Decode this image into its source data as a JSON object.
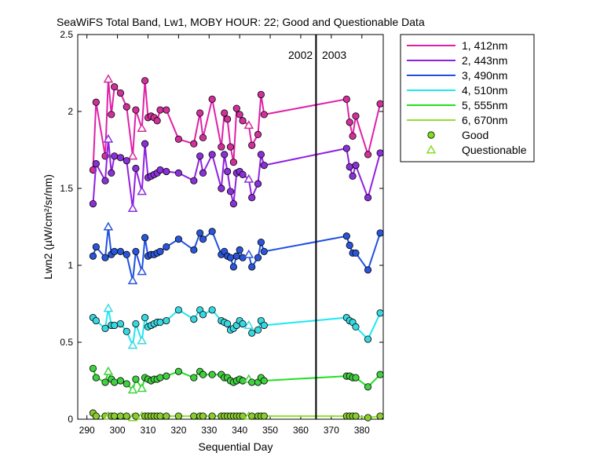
{
  "chart_data": {
    "type": "line",
    "title": "SeaWiFS Total Band, Lw1, MOBY HOUR: 22;  Good and Questionable Data",
    "xlabel": "Sequential Day",
    "ylabel": "Lwn2 (µW/cm²/sr/nm)",
    "xlim": [
      287,
      387
    ],
    "ylim": [
      0,
      2.5
    ],
    "xticks": [
      290,
      300,
      310,
      320,
      330,
      340,
      350,
      360,
      370,
      380
    ],
    "yticks": [
      0,
      0.5,
      1,
      1.5,
      2,
      2.5
    ],
    "ytick_labels": [
      "0",
      "0.5",
      "1",
      "1.5",
      "2",
      "2.5"
    ],
    "grid": false,
    "legend_position": "outside-right-top",
    "year_divider": {
      "x": 365,
      "left_label": "2002",
      "right_label": "2003"
    },
    "series": [
      {
        "name": "1, 412nm",
        "color": "#e020a8",
        "marker_color": "#d0309a",
        "points": [
          [
            292,
            1.62
          ],
          [
            293,
            2.06
          ],
          [
            296,
            1.71
          ],
          [
            297,
            2.21,
            "q"
          ],
          [
            298,
            1.98
          ],
          [
            299,
            2.16
          ],
          [
            301,
            2.12
          ],
          [
            303,
            2.03
          ],
          [
            305,
            1.71,
            "q"
          ],
          [
            306,
            2.01
          ],
          [
            308,
            1.89,
            "q"
          ],
          [
            309,
            2.2
          ],
          [
            310,
            1.96
          ],
          [
            311,
            1.97
          ],
          [
            312,
            1.96
          ],
          [
            313,
            1.94
          ],
          [
            314,
            2.01
          ],
          [
            316,
            2.01
          ],
          [
            320,
            1.82
          ],
          [
            325,
            1.79
          ],
          [
            327,
            1.99
          ],
          [
            328,
            1.83
          ],
          [
            331,
            2.08
          ],
          [
            334,
            1.77
          ],
          [
            335,
            1.99
          ],
          [
            336,
            1.95
          ],
          [
            337,
            1.77
          ],
          [
            338,
            1.67
          ],
          [
            339,
            2.02
          ],
          [
            340,
            1.98
          ],
          [
            341,
            1.94
          ],
          [
            343,
            1.91,
            "q"
          ],
          [
            344,
            1.78
          ],
          [
            346,
            1.85
          ],
          [
            347,
            2.11
          ],
          [
            348,
            1.98
          ],
          [
            375,
            2.08
          ],
          [
            376,
            1.93
          ],
          [
            377,
            1.84
          ],
          [
            378,
            1.97
          ],
          [
            382,
            1.72
          ],
          [
            386,
            2.05
          ]
        ]
      },
      {
        "name": "2, 443nm",
        "color": "#9020e0",
        "marker_color": "#8a30d8",
        "points": [
          [
            292,
            1.4
          ],
          [
            293,
            1.66
          ],
          [
            296,
            1.55
          ],
          [
            297,
            1.82,
            "q"
          ],
          [
            298,
            1.6
          ],
          [
            299,
            1.71
          ],
          [
            301,
            1.7
          ],
          [
            303,
            1.68
          ],
          [
            305,
            1.37,
            "q"
          ],
          [
            306,
            1.63
          ],
          [
            308,
            1.48,
            "q"
          ],
          [
            309,
            1.79
          ],
          [
            310,
            1.57
          ],
          [
            311,
            1.58
          ],
          [
            312,
            1.59
          ],
          [
            313,
            1.6
          ],
          [
            314,
            1.62
          ],
          [
            316,
            1.61
          ],
          [
            320,
            1.6
          ],
          [
            325,
            1.55
          ],
          [
            327,
            1.71
          ],
          [
            328,
            1.6
          ],
          [
            331,
            1.72
          ],
          [
            334,
            1.5
          ],
          [
            335,
            1.72
          ],
          [
            336,
            1.61
          ],
          [
            337,
            1.48
          ],
          [
            338,
            1.4
          ],
          [
            339,
            1.6
          ],
          [
            340,
            1.61
          ],
          [
            341,
            1.59
          ],
          [
            343,
            1.56,
            "q"
          ],
          [
            344,
            1.44
          ],
          [
            346,
            1.53
          ],
          [
            347,
            1.72
          ],
          [
            348,
            1.65
          ],
          [
            375,
            1.76
          ],
          [
            376,
            1.64
          ],
          [
            377,
            1.58
          ],
          [
            378,
            1.65
          ],
          [
            382,
            1.44
          ],
          [
            386,
            1.73
          ]
        ]
      },
      {
        "name": "3, 490nm",
        "color": "#2050e0",
        "marker_color": "#2a55d8",
        "points": [
          [
            292,
            1.06
          ],
          [
            293,
            1.12
          ],
          [
            296,
            1.05
          ],
          [
            297,
            1.25,
            "q"
          ],
          [
            298,
            1.07
          ],
          [
            299,
            1.09
          ],
          [
            301,
            1.09
          ],
          [
            303,
            1.07
          ],
          [
            305,
            0.9,
            "q"
          ],
          [
            306,
            1.09
          ],
          [
            308,
            0.96,
            "q"
          ],
          [
            309,
            1.18
          ],
          [
            310,
            1.06
          ],
          [
            311,
            1.07
          ],
          [
            312,
            1.07
          ],
          [
            313,
            1.08
          ],
          [
            314,
            1.09
          ],
          [
            316,
            1.12
          ],
          [
            320,
            1.17
          ],
          [
            325,
            1.1
          ],
          [
            327,
            1.21
          ],
          [
            328,
            1.17
          ],
          [
            331,
            1.22
          ],
          [
            334,
            1.07
          ],
          [
            335,
            1.09
          ],
          [
            336,
            1.06
          ],
          [
            337,
            1.05
          ],
          [
            338,
            0.99
          ],
          [
            339,
            1.06
          ],
          [
            340,
            1.1
          ],
          [
            341,
            1.05
          ],
          [
            343,
            1.07,
            "q"
          ],
          [
            344,
            0.99
          ],
          [
            346,
            1.05
          ],
          [
            347,
            1.15
          ],
          [
            348,
            1.09
          ],
          [
            375,
            1.19
          ],
          [
            376,
            1.13
          ],
          [
            377,
            1.08
          ],
          [
            378,
            1.08
          ],
          [
            382,
            0.97
          ],
          [
            386,
            1.21
          ]
        ]
      },
      {
        "name": "4, 510nm",
        "color": "#20e8f0",
        "marker_color": "#38d8e0",
        "points": [
          [
            292,
            0.66
          ],
          [
            293,
            0.64
          ],
          [
            296,
            0.59
          ],
          [
            297,
            0.72,
            "q"
          ],
          [
            298,
            0.61
          ],
          [
            299,
            0.61
          ],
          [
            301,
            0.62
          ],
          [
            303,
            0.57
          ],
          [
            305,
            0.48,
            "q"
          ],
          [
            306,
            0.62
          ],
          [
            308,
            0.51,
            "q"
          ],
          [
            309,
            0.66
          ],
          [
            310,
            0.6
          ],
          [
            311,
            0.61
          ],
          [
            312,
            0.62
          ],
          [
            313,
            0.63
          ],
          [
            314,
            0.63
          ],
          [
            316,
            0.64
          ],
          [
            320,
            0.71
          ],
          [
            325,
            0.65
          ],
          [
            327,
            0.71
          ],
          [
            328,
            0.68
          ],
          [
            331,
            0.71
          ],
          [
            334,
            0.64
          ],
          [
            335,
            0.63
          ],
          [
            336,
            0.62
          ],
          [
            337,
            0.58
          ],
          [
            338,
            0.59
          ],
          [
            339,
            0.61
          ],
          [
            340,
            0.64
          ],
          [
            341,
            0.62
          ],
          [
            343,
            0.61,
            "q"
          ],
          [
            344,
            0.56
          ],
          [
            346,
            0.58
          ],
          [
            347,
            0.64
          ],
          [
            348,
            0.61
          ],
          [
            375,
            0.66
          ],
          [
            376,
            0.64
          ],
          [
            377,
            0.63
          ],
          [
            378,
            0.6
          ],
          [
            382,
            0.52
          ],
          [
            386,
            0.69
          ]
        ]
      },
      {
        "name": "5, 555nm",
        "color": "#20e020",
        "marker_color": "#40d040",
        "points": [
          [
            292,
            0.33
          ],
          [
            293,
            0.27
          ],
          [
            296,
            0.24
          ],
          [
            297,
            0.31,
            "q"
          ],
          [
            298,
            0.26
          ],
          [
            299,
            0.24
          ],
          [
            301,
            0.25
          ],
          [
            303,
            0.23
          ],
          [
            305,
            0.19,
            "q"
          ],
          [
            306,
            0.26
          ],
          [
            308,
            0.2,
            "q"
          ],
          [
            309,
            0.27
          ],
          [
            310,
            0.26
          ],
          [
            311,
            0.25
          ],
          [
            312,
            0.26
          ],
          [
            313,
            0.26
          ],
          [
            314,
            0.27
          ],
          [
            316,
            0.28
          ],
          [
            320,
            0.31
          ],
          [
            325,
            0.27
          ],
          [
            327,
            0.31
          ],
          [
            328,
            0.29
          ],
          [
            331,
            0.29
          ],
          [
            334,
            0.29
          ],
          [
            335,
            0.27
          ],
          [
            336,
            0.27
          ],
          [
            337,
            0.25
          ],
          [
            338,
            0.24
          ],
          [
            339,
            0.25
          ],
          [
            340,
            0.26
          ],
          [
            341,
            0.25
          ],
          [
            343,
            0.26,
            "q"
          ],
          [
            344,
            0.24
          ],
          [
            346,
            0.24
          ],
          [
            347,
            0.27
          ],
          [
            348,
            0.25
          ],
          [
            375,
            0.28
          ],
          [
            376,
            0.28
          ],
          [
            377,
            0.27
          ],
          [
            378,
            0.27
          ],
          [
            382,
            0.21
          ],
          [
            386,
            0.29
          ]
        ]
      },
      {
        "name": "6, 670nm",
        "color": "#90e030",
        "marker_color": "#88cc30",
        "points": [
          [
            292,
            0.04
          ],
          [
            293,
            0.02
          ],
          [
            296,
            0.02
          ],
          [
            297,
            0.02,
            "q"
          ],
          [
            298,
            0.02
          ],
          [
            299,
            0.02
          ],
          [
            301,
            0.02
          ],
          [
            303,
            0.02
          ],
          [
            305,
            0.01,
            "q"
          ],
          [
            306,
            0.02
          ],
          [
            308,
            0.02,
            "q"
          ],
          [
            309,
            0.02
          ],
          [
            310,
            0.02
          ],
          [
            311,
            0.02
          ],
          [
            312,
            0.02
          ],
          [
            313,
            0.02
          ],
          [
            314,
            0.02
          ],
          [
            316,
            0.02
          ],
          [
            320,
            0.02
          ],
          [
            325,
            0.02
          ],
          [
            327,
            0.02
          ],
          [
            328,
            0.02
          ],
          [
            331,
            0.02
          ],
          [
            334,
            0.02
          ],
          [
            335,
            0.02
          ],
          [
            336,
            0.02
          ],
          [
            337,
            0.02
          ],
          [
            338,
            0.02
          ],
          [
            339,
            0.02
          ],
          [
            340,
            0.02
          ],
          [
            341,
            0.02
          ],
          [
            343,
            0.02,
            "q"
          ],
          [
            344,
            0.02
          ],
          [
            346,
            0.02
          ],
          [
            347,
            0.02
          ],
          [
            348,
            0.02
          ],
          [
            375,
            0.02
          ],
          [
            376,
            0.02
          ],
          [
            377,
            0.02
          ],
          [
            378,
            0.02
          ],
          [
            382,
            0.01
          ],
          [
            386,
            0.02
          ]
        ]
      }
    ],
    "marker_legend": [
      {
        "name": "Good",
        "marker": "circle",
        "color": "#80e020"
      },
      {
        "name": "Questionable",
        "marker": "triangle",
        "color": "#80e020"
      }
    ]
  }
}
